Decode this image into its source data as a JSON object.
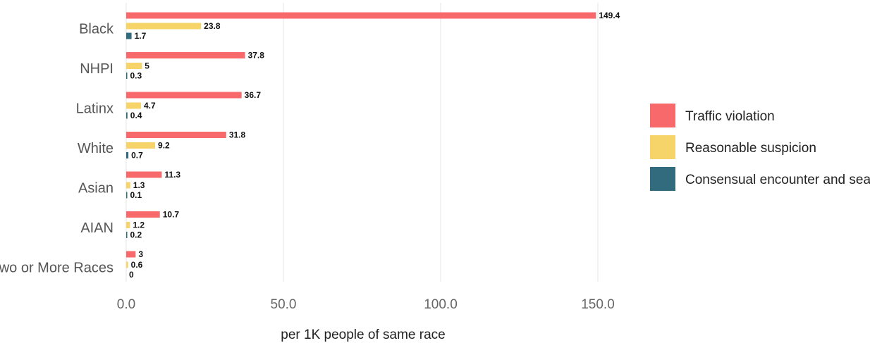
{
  "chart_data": {
    "type": "bar",
    "orientation": "horizontal",
    "categories": [
      "Black",
      "NHPI",
      "Latinx",
      "White",
      "Asian",
      "AIAN",
      "Two or More Races"
    ],
    "series": [
      {
        "name": "Traffic violation",
        "color": "#F8696B",
        "values": [
          149.4,
          37.8,
          36.7,
          31.8,
          11.3,
          10.7,
          3
        ]
      },
      {
        "name": "Reasonable suspicion",
        "color": "#F6D46A",
        "values": [
          23.8,
          5,
          4.7,
          9.2,
          1.3,
          1.2,
          0.6
        ]
      },
      {
        "name": "Consensual encounter and search",
        "color": "#336B7E",
        "values": [
          1.7,
          0.3,
          0.4,
          0.7,
          0.1,
          0.2,
          0
        ]
      }
    ],
    "value_labels": [
      [
        "149.4",
        "37.8",
        "36.7",
        "31.8",
        "11.3",
        "10.7",
        "3"
      ],
      [
        "23.8",
        "5",
        "4.7",
        "9.2",
        "1.3",
        "1.2",
        "0.6"
      ],
      [
        "1.7",
        "0.3",
        "0.4",
        "0.7",
        "0.1",
        "0.2",
        "0"
      ]
    ],
    "xticks": [
      0,
      50,
      100,
      150
    ],
    "xtick_labels": [
      "0.0",
      "50.0",
      "100.0",
      "150.0"
    ],
    "xlim": [
      0,
      170
    ],
    "xlabel": "per 1K people of same race",
    "ylabel": "",
    "title": "",
    "grid": "vertical",
    "legend_position": "right"
  }
}
